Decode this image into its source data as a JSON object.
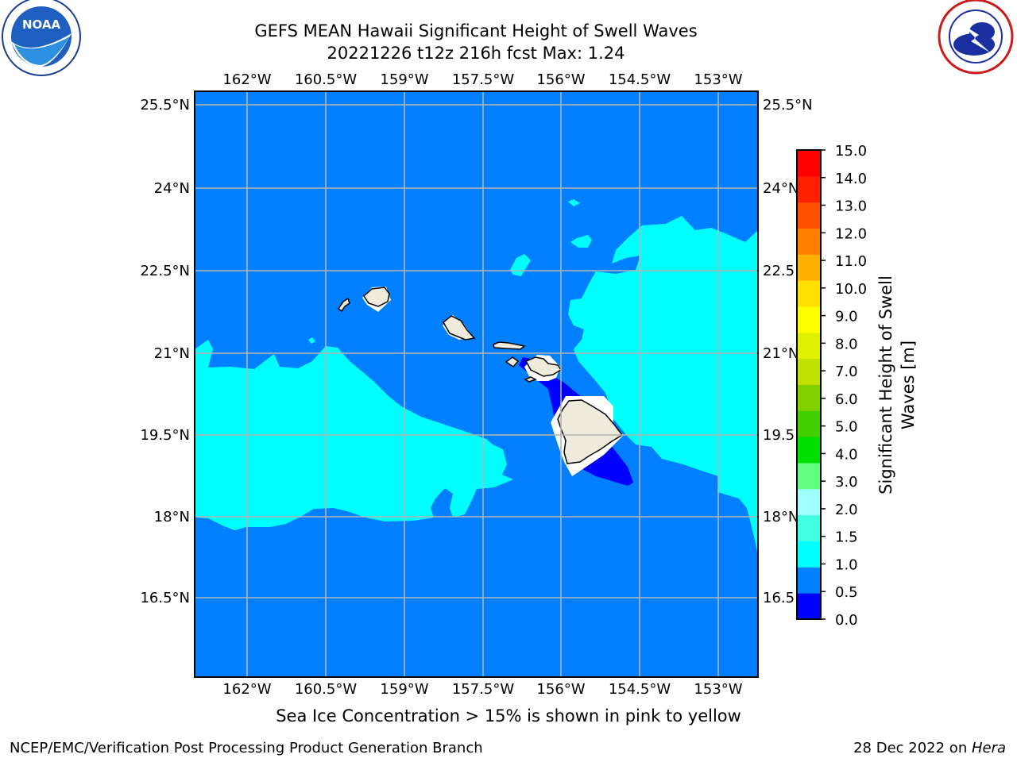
{
  "header": {
    "title_line1": "GEFS MEAN Hawaii Significant Height of Swell Waves",
    "title_line2": "20221226 t12z 216h fcst   Max: 1.24"
  },
  "logos": {
    "left_name": "noaa-logo",
    "left_text": "NOAA",
    "left_ring_text": "NATIONAL OCEANIC AND ATMOSPHERIC ADMINISTRATION · U.S. DEPARTMENT OF COMMERCE",
    "right_name": "nws-logo",
    "right_ring_text": "NATIONAL WEATHER SERVICE"
  },
  "map": {
    "lon_ticks": [
      "162°W",
      "160.5°W",
      "159°W",
      "157.5°W",
      "156°W",
      "154.5°W",
      "153°W"
    ],
    "lat_ticks": [
      "25.5°N",
      "24°N",
      "22.5°N",
      "21°N",
      "19.5°N",
      "18°N",
      "16.5°N"
    ],
    "lat_ticks_right": [
      "25.5°N",
      "24°N",
      "22.5",
      "21°N",
      "19.5",
      "18°N",
      "16.5"
    ],
    "ocean_color": "#0080ff",
    "swell_1_0_to_1_5_color": "#00ffff",
    "swell_0_to_0_5_color": "#0000ff",
    "land_color": "#eeebdd",
    "grid_color": "#b4b4b4"
  },
  "colorbar": {
    "label_line1": "Significant Height of Swell",
    "label_line2": "Waves [m]",
    "ticks": [
      "0.0",
      "0.5",
      "1.0",
      "1.5",
      "2.0",
      "3.0",
      "4.0",
      "5.0",
      "6.0",
      "7.0",
      "8.0",
      "9.0",
      "10.0",
      "11.0",
      "12.0",
      "13.0",
      "14.0",
      "15.0"
    ],
    "colors": [
      "#0000ff",
      "#0080ff",
      "#00ffff",
      "#40ffe0",
      "#a0ffff",
      "#60ff80",
      "#00e000",
      "#40d000",
      "#80d000",
      "#c0e000",
      "#e0f000",
      "#ffff00",
      "#ffe000",
      "#ffb000",
      "#ff8000",
      "#ff5000",
      "#ff2000",
      "#ff0000"
    ]
  },
  "ice_note": "Sea Ice Concentration > 15% is shown in pink to yellow",
  "footer": {
    "left": "NCEP/EMC/Verification Post Processing Product Generation Branch",
    "right_date": "28 Dec 2022 on ",
    "right_host": "Hera"
  }
}
